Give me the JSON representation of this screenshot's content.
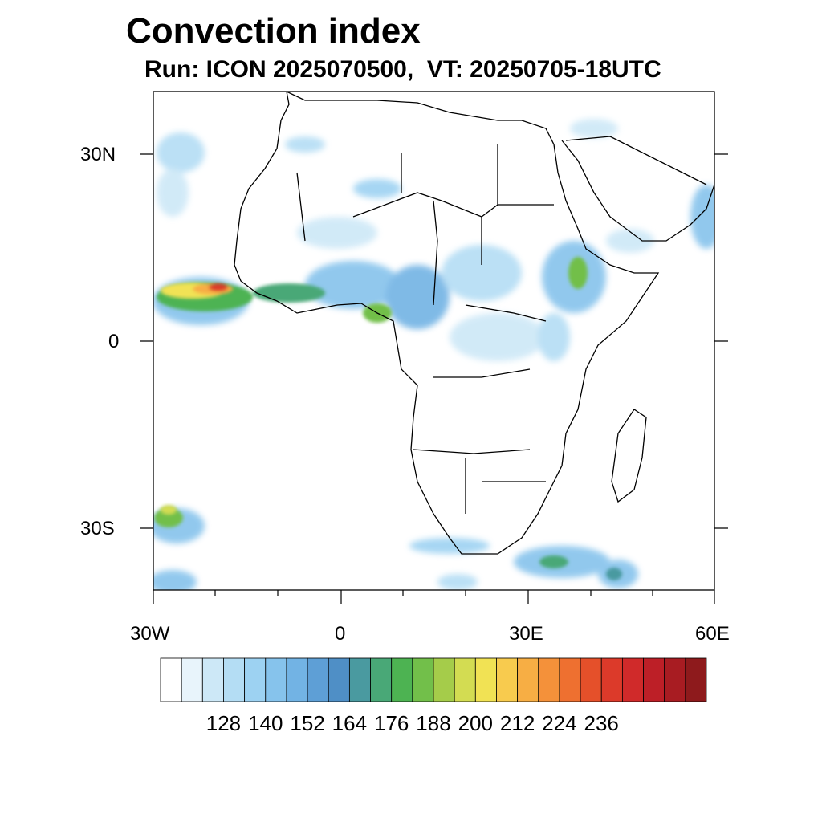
{
  "title": "Convection index",
  "subtitle": "Run: ICON 2025070500,  VT: 20250705-18UTC",
  "map": {
    "lon_range": [
      -30,
      60
    ],
    "lat_range": [
      -40,
      40
    ],
    "lat_ticks": [
      {
        "label": "30N",
        "lat": 30
      },
      {
        "label": "0",
        "lat": 0
      },
      {
        "label": "30S",
        "lat": -30
      }
    ],
    "lon_ticks": [
      {
        "label": "30W",
        "lon": -30
      },
      {
        "label": "0",
        "lon": 0
      },
      {
        "label": "30E",
        "lon": 30
      },
      {
        "label": "60E",
        "lon": 60
      }
    ]
  },
  "colorbar": {
    "labels": [
      "128",
      "140",
      "152",
      "164",
      "176",
      "188",
      "200",
      "212",
      "224",
      "236"
    ],
    "colors": [
      "#ffffff",
      "#e8f4fb",
      "#cde8f7",
      "#b4ddf4",
      "#9dd2f2",
      "#86c3ec",
      "#72b3e4",
      "#5e9fd6",
      "#4f8fc6",
      "#4a9aa0",
      "#49a877",
      "#4db352",
      "#72bf4a",
      "#a5cc4a",
      "#d3dc52",
      "#f1e254",
      "#f8cb4e",
      "#f7ae44",
      "#f4913a",
      "#ee7030",
      "#e5502a",
      "#dc3a2a",
      "#d02a2a",
      "#bd1f27",
      "#a81c22",
      "#8e1a1c"
    ]
  }
}
